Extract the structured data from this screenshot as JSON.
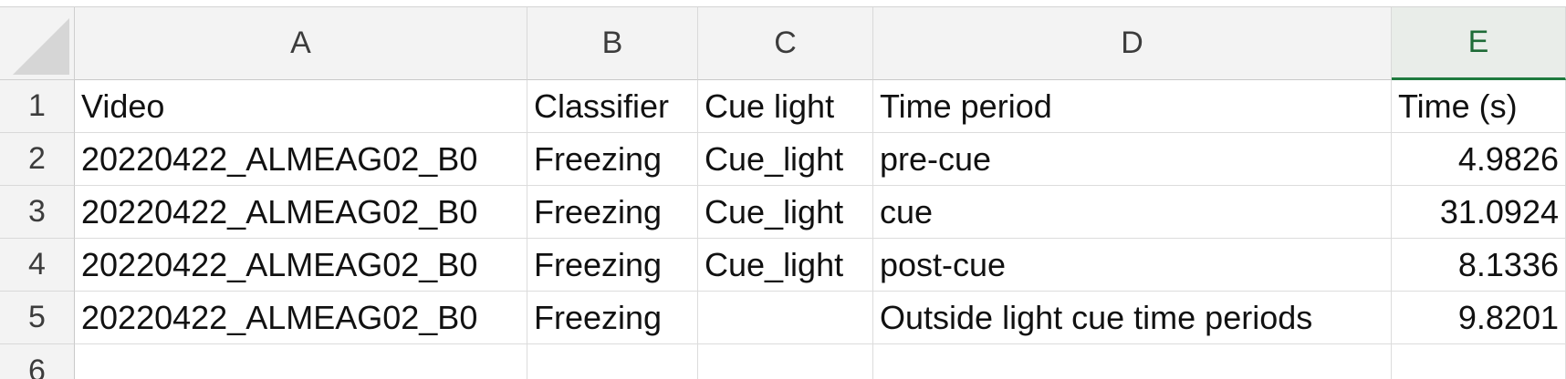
{
  "columns": [
    "A",
    "B",
    "C",
    "D",
    "E"
  ],
  "selected_column": "E",
  "rows": [
    {
      "num": "1",
      "cells": [
        "Video",
        "Classifier",
        "Cue light",
        "Time period",
        "Time (s)"
      ]
    },
    {
      "num": "2",
      "cells": [
        "20220422_ALMEAG02_B0",
        "Freezing",
        "Cue_light",
        "pre-cue",
        "4.9826"
      ]
    },
    {
      "num": "3",
      "cells": [
        "20220422_ALMEAG02_B0",
        "Freezing",
        "Cue_light",
        "cue",
        "31.0924"
      ]
    },
    {
      "num": "4",
      "cells": [
        "20220422_ALMEAG02_B0",
        "Freezing",
        "Cue_light",
        "post-cue",
        "8.1336"
      ]
    },
    {
      "num": "5",
      "cells": [
        "20220422_ALMEAG02_B0",
        "Freezing",
        "",
        "Outside light cue time periods",
        "9.8201"
      ]
    },
    {
      "num": "6",
      "cells": [
        "",
        "",
        "",
        "",
        ""
      ]
    }
  ]
}
